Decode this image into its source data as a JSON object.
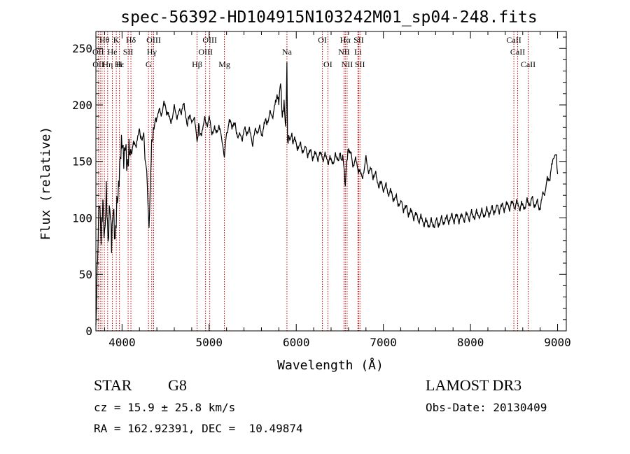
{
  "chart_data": {
    "type": "line",
    "title": "spec-56392-HD104915N103242M01_sp04-248.fits",
    "xlabel": "Wavelength (Å)",
    "ylabel": "Flux (relative)",
    "xlim": [
      3700,
      9100
    ],
    "ylim": [
      0,
      265
    ],
    "x_ticks": [
      4000,
      5000,
      6000,
      7000,
      8000,
      9000
    ],
    "y_ticks": [
      0,
      50,
      100,
      150,
      200,
      250
    ],
    "grid": false,
    "series": [
      {
        "name": "flux",
        "color": "#000000",
        "x": [
          3700,
          3720,
          3740,
          3760,
          3780,
          3800,
          3820,
          3840,
          3860,
          3880,
          3900,
          3920,
          3940,
          3960,
          3980,
          4000,
          4020,
          4040,
          4060,
          4080,
          4100,
          4150,
          4200,
          4250,
          4290,
          4310,
          4330,
          4340,
          4360,
          4400,
          4450,
          4500,
          4550,
          4600,
          4650,
          4700,
          4750,
          4800,
          4850,
          4861,
          4880,
          4900,
          4950,
          5000,
          5050,
          5100,
          5150,
          5175,
          5200,
          5250,
          5300,
          5350,
          5400,
          5450,
          5500,
          5550,
          5600,
          5650,
          5700,
          5750,
          5780,
          5800,
          5820,
          5840,
          5860,
          5880,
          5893,
          5900,
          5920,
          5950,
          6000,
          6100,
          6200,
          6300,
          6400,
          6500,
          6540,
          6563,
          6580,
          6600,
          6650,
          6700,
          6750,
          6800,
          6850,
          6900,
          6950,
          7000,
          7050,
          7100,
          7200,
          7300,
          7400,
          7500,
          7600,
          7700,
          7800,
          7900,
          8000,
          8100,
          8200,
          8300,
          8400,
          8500,
          8600,
          8700,
          8800,
          8850,
          8900,
          8950,
          8980,
          9000
        ],
        "y": [
          5,
          60,
          110,
          80,
          120,
          90,
          130,
          75,
          105,
          70,
          110,
          85,
          120,
          130,
          150,
          160,
          145,
          165,
          150,
          170,
          160,
          165,
          175,
          170,
          130,
          90,
          140,
          165,
          180,
          190,
          195,
          200,
          185,
          195,
          190,
          200,
          185,
          190,
          180,
          165,
          185,
          175,
          185,
          185,
          175,
          180,
          172,
          150,
          178,
          185,
          180,
          170,
          175,
          178,
          168,
          180,
          175,
          185,
          190,
          195,
          205,
          200,
          220,
          190,
          205,
          180,
          240,
          165,
          170,
          172,
          165,
          160,
          155,
          155,
          150,
          155,
          150,
          125,
          150,
          160,
          150,
          148,
          135,
          150,
          140,
          138,
          130,
          128,
          125,
          120,
          112,
          105,
          100,
          95,
          95,
          98,
          100,
          100,
          102,
          103,
          105,
          108,
          110,
          112,
          110,
          115,
          110,
          125,
          135,
          150,
          160,
          140
        ]
      }
    ],
    "line_labels": [
      {
        "text": "Hθ",
        "row": 1,
        "wavelength": 3798
      },
      {
        "text": "K",
        "row": 1,
        "wavelength": 3934
      },
      {
        "text": "Hδ",
        "row": 1,
        "wavelength": 4102
      },
      {
        "text": "OIII",
        "row": 1,
        "wavelength": 4363
      },
      {
        "text": "OIII",
        "row": 1,
        "wavelength": 5007
      },
      {
        "text": "Na",
        "row": 2,
        "wavelength": 5893
      },
      {
        "text": "OI",
        "row": 1,
        "wavelength": 6300
      },
      {
        "text": "Hα",
        "row": 1,
        "wavelength": 6563
      },
      {
        "text": "SII",
        "row": 1,
        "wavelength": 6717
      },
      {
        "text": "CaII",
        "row": 1,
        "wavelength": 8498
      },
      {
        "text": "OII",
        "row": 2,
        "wavelength": 3727
      },
      {
        "text": "He",
        "row": 2,
        "wavelength": 3889
      },
      {
        "text": "SII",
        "row": 2,
        "wavelength": 4070
      },
      {
        "text": "Hγ",
        "row": 2,
        "wavelength": 4341
      },
      {
        "text": "OIII",
        "row": 2,
        "wavelength": 4959
      },
      {
        "text": "NII",
        "row": 2,
        "wavelength": 6548
      },
      {
        "text": "Li",
        "row": 2,
        "wavelength": 6708
      },
      {
        "text": "CaII",
        "row": 2,
        "wavelength": 8542
      },
      {
        "text": "OII",
        "row": 3,
        "wavelength": 3729
      },
      {
        "text": "Hε",
        "row": 3,
        "wavelength": 3970
      },
      {
        "text": "Hη",
        "row": 3,
        "wavelength": 3835
      },
      {
        "text": "H",
        "row": 3,
        "wavelength": 3968
      },
      {
        "text": "G",
        "row": 3,
        "wavelength": 4304
      },
      {
        "text": "Hβ",
        "row": 3,
        "wavelength": 4861
      },
      {
        "text": "Mg",
        "row": 3,
        "wavelength": 5175
      },
      {
        "text": "OI",
        "row": 3,
        "wavelength": 6363
      },
      {
        "text": "NII",
        "row": 3,
        "wavelength": 6584
      },
      {
        "text": "SII",
        "row": 3,
        "wavelength": 6731
      },
      {
        "text": "CaII",
        "row": 3,
        "wavelength": 8662
      }
    ],
    "line_marker_wavelengths": [
      3727,
      3750,
      3771,
      3798,
      3835,
      3889,
      3934,
      3970,
      4070,
      4102,
      4304,
      4341,
      4363,
      4861,
      4959,
      5007,
      5175,
      5893,
      6300,
      6363,
      6548,
      6563,
      6584,
      6708,
      6717,
      6731,
      8498,
      8542,
      8662
    ],
    "marker_color": "#cc0000"
  },
  "info": {
    "object_class": "STAR",
    "subclass": "G8",
    "survey": "LAMOST DR3",
    "cz": "cz = 15.9 ± 25.8 km/s",
    "obs_date": "Obs-Date: 20130409",
    "coords": "RA = 162.92391, DEC =  10.49874"
  }
}
